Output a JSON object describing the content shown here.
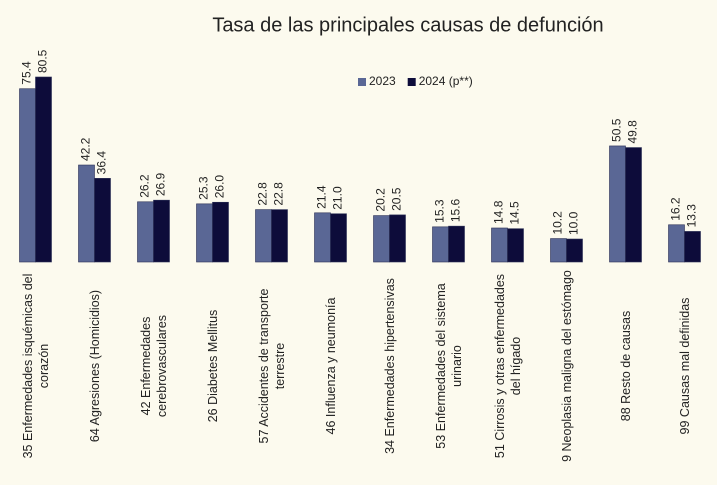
{
  "chart_data": {
    "type": "bar",
    "title": "Tasa de las principales causas de defunción",
    "categories": [
      "35 Enfermedades isquémicas del corazón",
      "64 Agresiones (Homicidios)",
      "42 Enfermedades cerebrovasculares",
      "26 Diabetes Mellitus",
      "57 Accidentes de transporte terrestre",
      "46 Influenza y neumonía",
      "34 Enfermedades hipertensivas",
      "53 Enfermedades del sistema urinario",
      "51 Cirrosis y otras enfermedades del hígado",
      "9 Neoplasia maligna del estómago",
      "88 Resto de causas",
      "99 Causas mal definidas"
    ],
    "series": [
      {
        "name": "2023",
        "color": "#5a6795",
        "values": [
          75.4,
          42.2,
          26.2,
          25.3,
          22.8,
          21.4,
          20.2,
          15.3,
          14.8,
          10.2,
          50.5,
          16.2
        ],
        "value_labels": [
          "75.4",
          "42.2",
          "26.2",
          "25.3",
          "22.8",
          "21.4",
          "20.2",
          "15.3",
          "14.8",
          "10.2",
          "50.5",
          "16.2"
        ]
      },
      {
        "name": "2024 (p**)",
        "color": "#0d0c3a",
        "values": [
          80.5,
          36.4,
          26.9,
          26,
          22.8,
          21,
          20.5,
          15.6,
          14.5,
          10,
          49.8,
          13.3
        ],
        "value_labels": [
          "80.5",
          "36.4",
          "26.9",
          "26.0",
          "22.8",
          "21.0",
          "20.5",
          "15.6",
          "14.5",
          "10.0",
          "49.8",
          "13.3"
        ]
      }
    ],
    "legend": "top-right",
    "grid": false
  }
}
